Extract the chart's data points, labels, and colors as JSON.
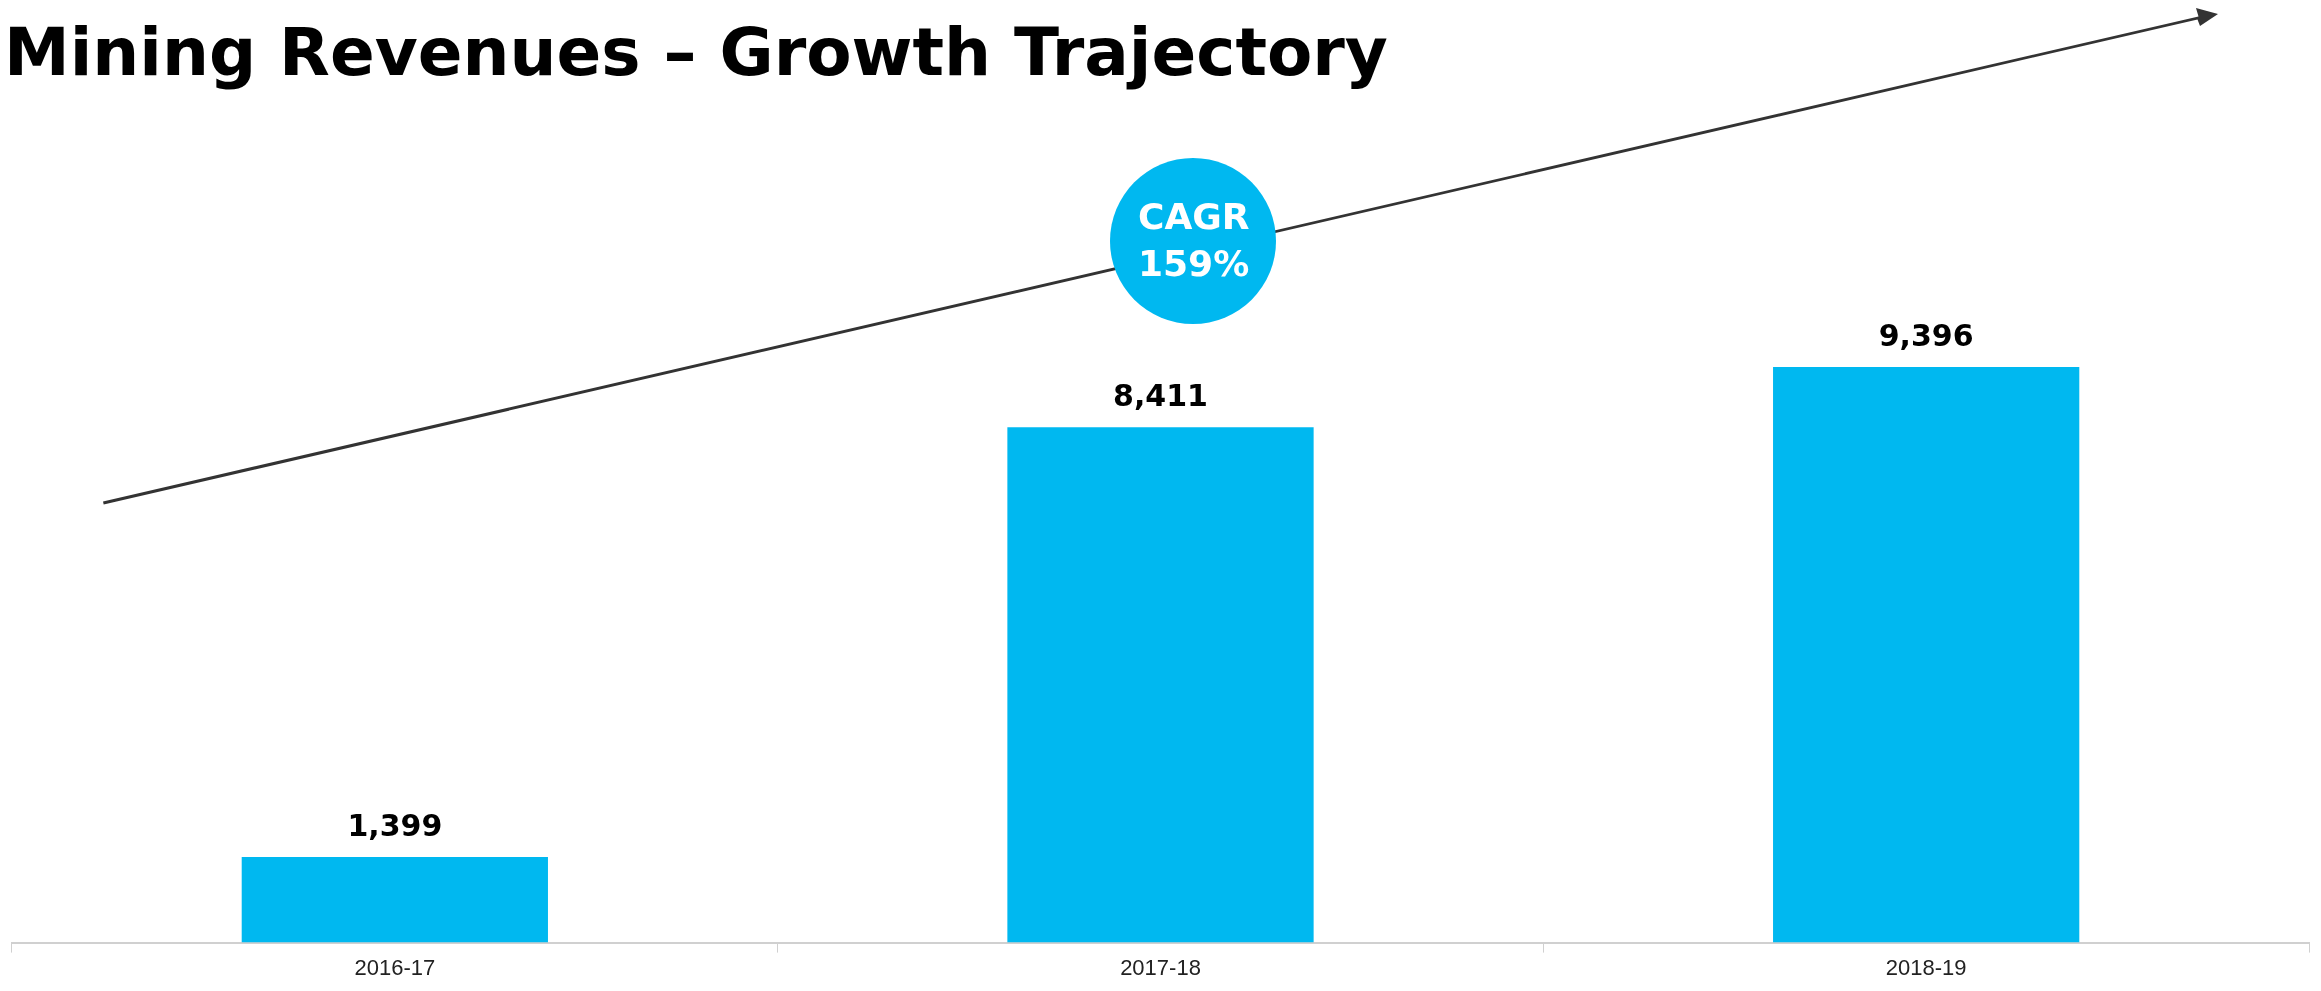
{
  "chart_data": {
    "type": "bar",
    "title": "Mining Revenues – Growth Trajectory",
    "categories": [
      "2016-17",
      "2017-18",
      "2018-19"
    ],
    "values": [
      1399,
      8411,
      9396
    ],
    "color": "#00b8f0",
    "value_labels": [
      "1,399",
      "8,411",
      "9,396"
    ],
    "grid": false,
    "legend": false,
    "annotations": [
      "CAGR 159%"
    ]
  }
}
